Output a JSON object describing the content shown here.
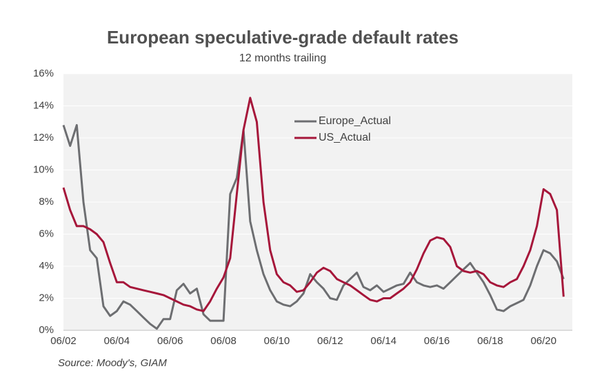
{
  "chart_data": {
    "type": "line",
    "title": "European speculative-grade default rates",
    "subtitle": "12 months trailing",
    "source": "Source: Moody's, GIAM",
    "x": [
      "06/02",
      "09/02",
      "12/02",
      "03/03",
      "06/03",
      "09/03",
      "12/03",
      "03/04",
      "06/04",
      "09/04",
      "12/04",
      "03/05",
      "06/05",
      "09/05",
      "12/05",
      "03/06",
      "06/06",
      "09/06",
      "12/06",
      "03/07",
      "06/07",
      "09/07",
      "12/07",
      "03/08",
      "06/08",
      "09/08",
      "12/08",
      "03/09",
      "06/09",
      "09/09",
      "12/09",
      "03/10",
      "06/10",
      "09/10",
      "12/10",
      "03/11",
      "06/11",
      "09/11",
      "12/11",
      "03/12",
      "06/12",
      "09/12",
      "12/12",
      "03/13",
      "06/13",
      "09/13",
      "12/13",
      "03/14",
      "06/14",
      "09/14",
      "12/14",
      "03/15",
      "06/15",
      "09/15",
      "12/15",
      "03/16",
      "06/16",
      "09/16",
      "12/16",
      "03/17",
      "06/17",
      "09/17",
      "12/17",
      "03/18",
      "06/18",
      "09/18",
      "12/18",
      "03/19",
      "06/19",
      "09/19",
      "12/19",
      "03/20",
      "06/20",
      "09/20",
      "12/20",
      "03/21"
    ],
    "series": [
      {
        "name": "Europe_Actual",
        "color": "#6d6e71",
        "values": [
          12.8,
          11.5,
          12.8,
          8,
          5,
          4.5,
          1.5,
          0.9,
          1.2,
          1.8,
          1.6,
          1.2,
          0.8,
          0.4,
          0.1,
          0.7,
          0.7,
          2.5,
          2.9,
          2.3,
          2.6,
          1.0,
          0.6,
          0.6,
          0.6,
          8.5,
          9.5,
          12.5,
          6.8,
          5.0,
          3.5,
          2.5,
          1.8,
          1.6,
          1.5,
          1.8,
          2.3,
          3.5,
          3.0,
          2.6,
          2.0,
          1.9,
          2.8,
          3.2,
          3.6,
          2.7,
          2.5,
          2.8,
          2.4,
          2.6,
          2.8,
          2.9,
          3.6,
          3.0,
          2.8,
          2.7,
          2.8,
          2.6,
          3.0,
          3.4,
          3.8,
          4.2,
          3.6,
          3.0,
          2.2,
          1.3,
          1.2,
          1.5,
          1.7,
          1.9,
          2.8,
          4.0,
          5.0,
          4.8,
          4.3,
          3.2
        ]
      },
      {
        "name": "US_Actual",
        "color": "#a6163a",
        "values": [
          8.9,
          7.5,
          6.5,
          6.5,
          6.3,
          6.0,
          5.5,
          4.2,
          3.0,
          3.0,
          2.7,
          2.6,
          2.5,
          2.4,
          2.3,
          2.2,
          2.0,
          1.8,
          1.6,
          1.5,
          1.3,
          1.2,
          1.8,
          2.6,
          3.3,
          4.5,
          8.5,
          12.5,
          14.5,
          13.0,
          8.0,
          5.0,
          3.5,
          3.0,
          2.8,
          2.4,
          2.5,
          3.0,
          3.6,
          3.9,
          3.7,
          3.2,
          3.0,
          2.8,
          2.5,
          2.2,
          1.9,
          1.8,
          2.0,
          2.0,
          2.3,
          2.6,
          3.0,
          3.8,
          4.8,
          5.6,
          5.8,
          5.7,
          5.2,
          4.0,
          3.7,
          3.6,
          3.7,
          3.5,
          3.0,
          2.8,
          2.7,
          3.0,
          3.2,
          4.0,
          5.0,
          6.5,
          8.8,
          8.5,
          7.5,
          2.1
        ]
      }
    ],
    "xticks": [
      "06/02",
      "06/04",
      "06/06",
      "06/08",
      "06/10",
      "06/12",
      "06/14",
      "06/16",
      "06/18",
      "06/20"
    ],
    "ylim": [
      0,
      16
    ],
    "yticks": [
      {
        "value": 0,
        "label": "0%"
      },
      {
        "value": 2,
        "label": "2%"
      },
      {
        "value": 4,
        "label": "4%"
      },
      {
        "value": 6,
        "label": "6%"
      },
      {
        "value": 8,
        "label": "8%"
      },
      {
        "value": 10,
        "label": "10%"
      },
      {
        "value": 12,
        "label": "12%"
      },
      {
        "value": 14,
        "label": "14%"
      },
      {
        "value": 16,
        "label": "16%"
      }
    ],
    "grid": true,
    "legend": "top-center"
  }
}
